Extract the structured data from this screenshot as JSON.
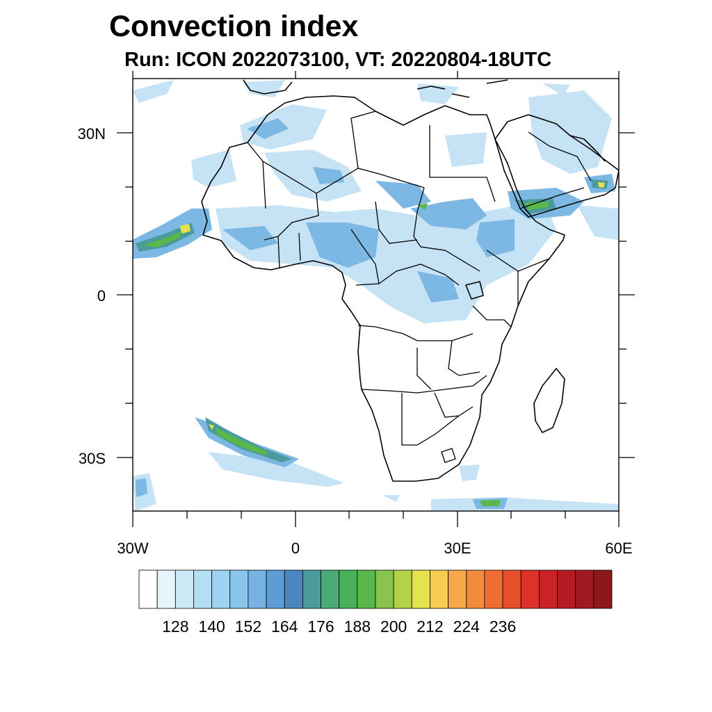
{
  "title": "Convection index",
  "subtitle": "Run: ICON 2022073100,  VT: 20220804-18UTC",
  "axes": {
    "lat_labels": [
      "30N",
      "0",
      "30S"
    ],
    "lon_labels": [
      "30W",
      "0",
      "30E",
      "60E"
    ],
    "lon_range": [
      -30,
      60
    ],
    "lat_range": [
      -40,
      40
    ]
  },
  "colorbar": {
    "colors": [
      "#ffffff",
      "#e6f4fc",
      "#cde9f8",
      "#b4def4",
      "#9dd3f2",
      "#8ac5eb",
      "#76b3e3",
      "#5b9dd4",
      "#4b87be",
      "#4b9a9c",
      "#4aaa78",
      "#47b25a",
      "#5ab84a",
      "#88c34d",
      "#b2d24a",
      "#e4e24e",
      "#f7cc50",
      "#f7a848",
      "#f38b3c",
      "#ef6c32",
      "#e6502c",
      "#dc3228",
      "#ca2226",
      "#b61a24",
      "#a01820",
      "#8c1818"
    ],
    "tick_labels": [
      "128",
      "140",
      "152",
      "164",
      "176",
      "188",
      "200",
      "212",
      "224",
      "236"
    ]
  },
  "fields": {
    "weak": "#c6e3f5",
    "moderate": "#7db8e4",
    "strong": "#4b9a9c",
    "very_strong": "#5ab84a",
    "peak": "#e4e24e"
  }
}
